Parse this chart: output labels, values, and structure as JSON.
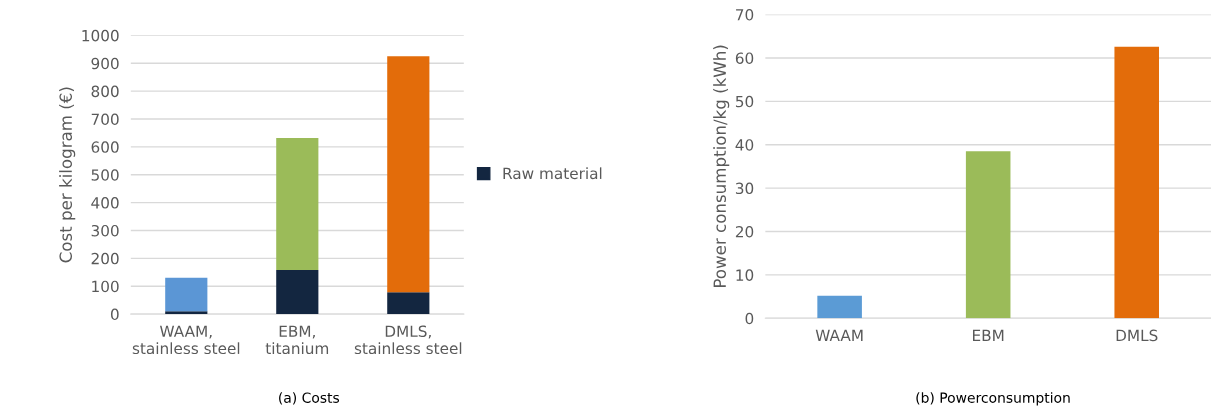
{
  "chart_data": [
    {
      "type": "bar",
      "stacked": true,
      "ylabel": "Cost per kilogram (€)",
      "categories": [
        "WAAM,\nstainless steel",
        "EBM,\ntitanium",
        "DMLS,\nstainless steel"
      ],
      "series": [
        {
          "name": "Raw material",
          "color": "#132640",
          "values": [
            10,
            158,
            78
          ]
        },
        {
          "colors": [
            "#5b96d5",
            "#9bbb59",
            "#e36c0a"
          ],
          "values": [
            120,
            474,
            847
          ]
        }
      ],
      "ylim": [
        0,
        1000
      ],
      "yticks": [
        0,
        100,
        200,
        300,
        400,
        500,
        600,
        700,
        800,
        900,
        1000
      ],
      "grid": "y",
      "legend": "right",
      "annotations": [
        "(a) Costs"
      ]
    },
    {
      "type": "bar",
      "ylabel": "Power consumption/kg (kWh)",
      "categories": [
        "WAAM",
        "EBM",
        "DMLS"
      ],
      "series": [
        {
          "colors": [
            "#5b9bd5",
            "#9bbb59",
            "#e36c0a"
          ],
          "values": [
            5.2,
            38.5,
            62.6
          ]
        }
      ],
      "ylim": [
        0,
        70
      ],
      "yticks": [
        0,
        10,
        20,
        30,
        40,
        50,
        60,
        70
      ],
      "grid": "y",
      "annotations": [
        "(b) Powerconsumption"
      ]
    }
  ]
}
